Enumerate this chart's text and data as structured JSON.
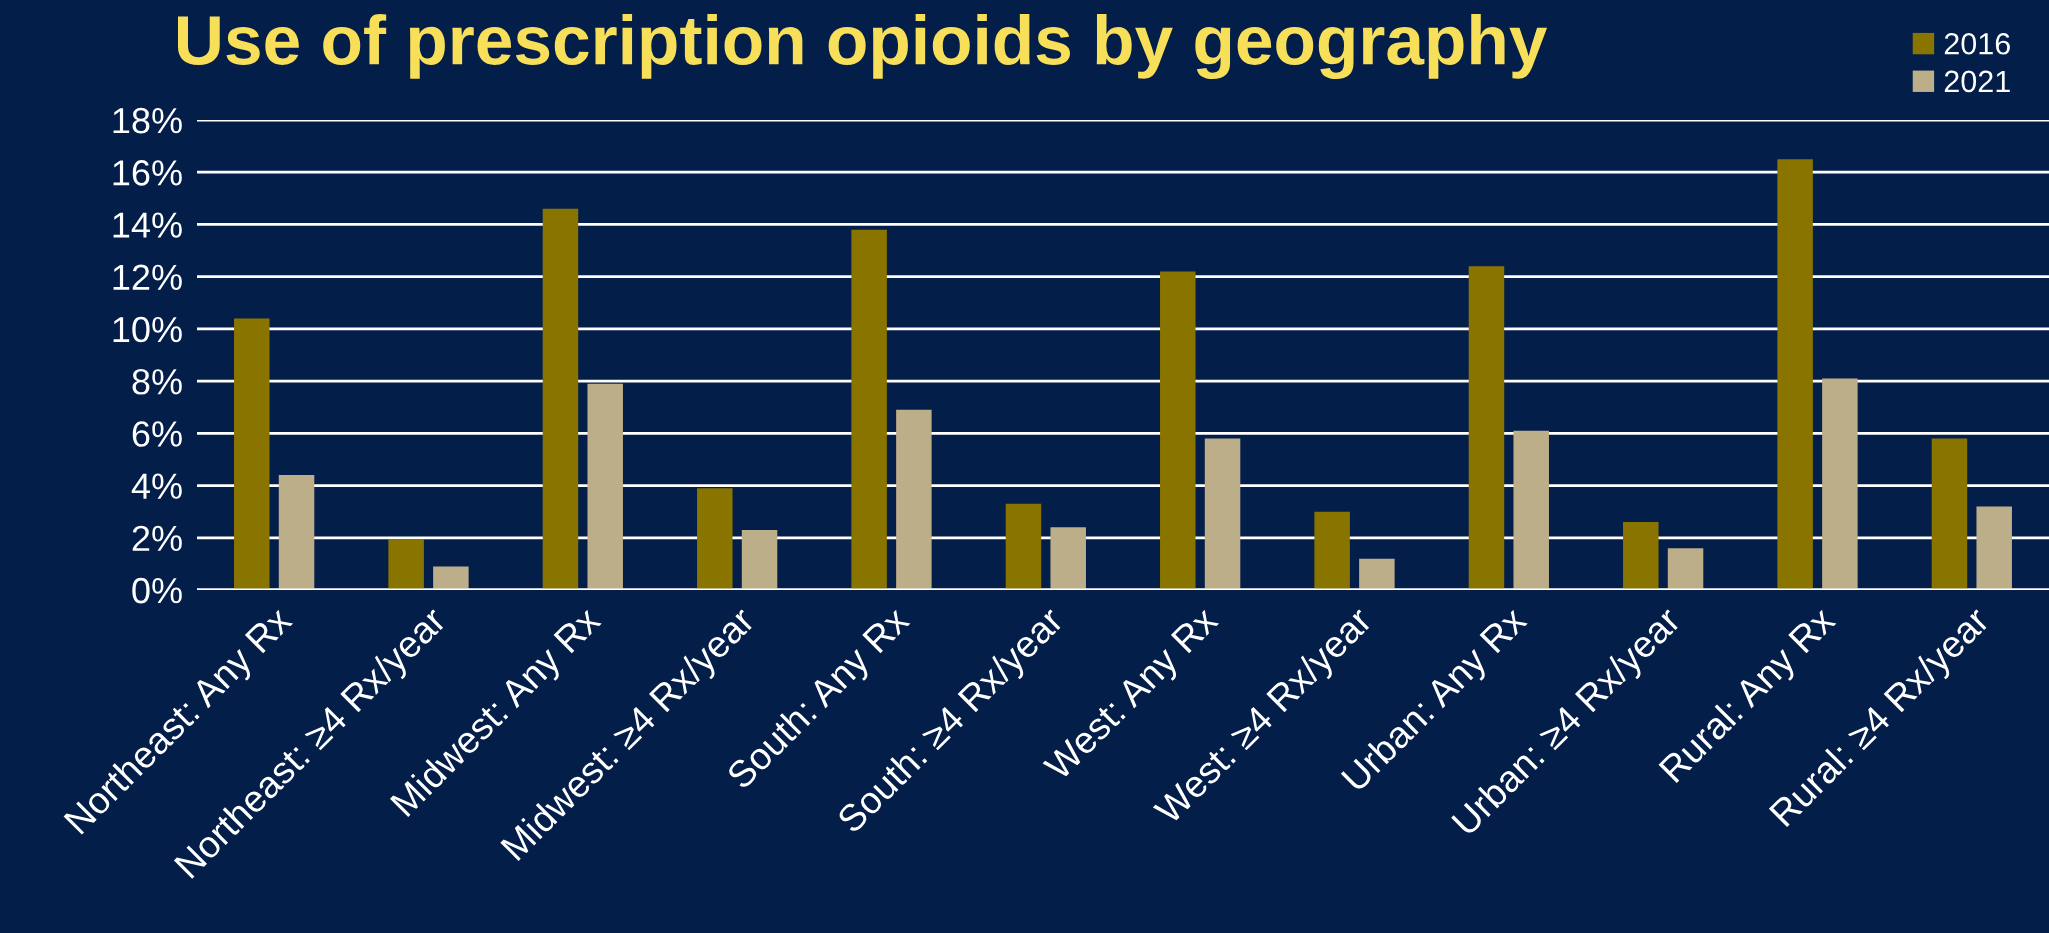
{
  "chart_data": {
    "type": "bar",
    "title": "Use of prescription opioids by geography",
    "categories": [
      "Northeast: Any Rx",
      "Northeast: ≥4 Rx/year",
      "Midwest: Any Rx",
      "Midwest: ≥4 Rx/year",
      "South: Any Rx",
      "South: ≥4 Rx/year",
      "West: Any Rx",
      "West: ≥4 Rx/year",
      "Urban: Any Rx",
      "Urban: ≥4 Rx/year",
      "Rural: Any Rx",
      "Rural: ≥4 Rx/year"
    ],
    "series": [
      {
        "name": "2016",
        "color": "#8a7400",
        "values": [
          10.4,
          1.95,
          14.6,
          3.9,
          13.8,
          3.3,
          12.2,
          3.0,
          12.4,
          2.6,
          16.5,
          5.8
        ]
      },
      {
        "name": "2021",
        "color": "#bcae88",
        "values": [
          4.4,
          0.9,
          7.9,
          2.3,
          6.9,
          2.4,
          5.8,
          1.2,
          6.1,
          1.6,
          8.1,
          3.2
        ]
      }
    ],
    "ylim": [
      0,
      18
    ],
    "yticks": [
      {
        "value": 0,
        "label": "0%"
      },
      {
        "value": 2,
        "label": "2%"
      },
      {
        "value": 4,
        "label": "4%"
      },
      {
        "value": 6,
        "label": "6%"
      },
      {
        "value": 8,
        "label": "8%"
      },
      {
        "value": 10,
        "label": "10%"
      },
      {
        "value": 12,
        "label": "12%"
      },
      {
        "value": 14,
        "label": "14%"
      },
      {
        "value": 16,
        "label": "16%"
      },
      {
        "value": 18,
        "label": "18%"
      }
    ],
    "grid": "y",
    "legend": "top right"
  }
}
